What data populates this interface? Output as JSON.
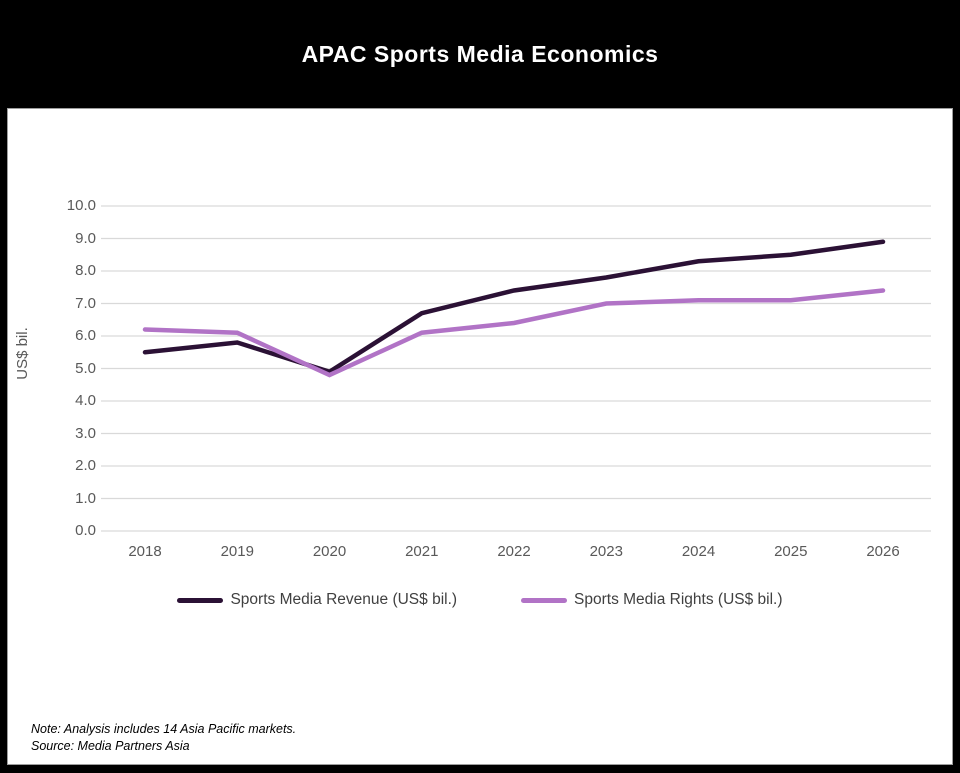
{
  "title": "APAC Sports Media Economics",
  "chart_data": {
    "type": "line",
    "title": "APAC Sports Media Economics",
    "categories": [
      "2018",
      "2019",
      "2020",
      "2021",
      "2022",
      "2023",
      "2024",
      "2025",
      "2026"
    ],
    "series": [
      {
        "name": "Sports Media Revenue (US$ bil.)",
        "color": "#2b1135",
        "values": [
          5.5,
          5.8,
          4.9,
          6.7,
          7.4,
          7.8,
          8.3,
          8.5,
          8.9
        ]
      },
      {
        "name": "Sports Media Rights (US$ bil.)",
        "color": "#b173c6",
        "values": [
          6.2,
          6.1,
          4.8,
          6.1,
          6.4,
          7.0,
          7.1,
          7.1,
          7.4
        ]
      }
    ],
    "xlabel": "",
    "ylabel": "US$ bil.",
    "ylim": [
      0,
      10
    ],
    "ytick_step": 1.0,
    "ytick_format": "one_decimal",
    "grid": true,
    "legend_position": "bottom"
  },
  "footer": {
    "note": "Note: Analysis includes 14 Asia Pacific markets.",
    "source": "Source: Media Partners Asia"
  },
  "colors": {
    "header_background": "#000000",
    "title_text": "#ffffff",
    "panel_background": "#ffffff",
    "panel_border": "#9d9d9d",
    "gridline": "#d9d9d9",
    "axis_text": "#595959",
    "legend_text": "#404040",
    "note_text": "#000000",
    "revenue_line": "#2b1135",
    "rights_line": "#b173c6"
  }
}
